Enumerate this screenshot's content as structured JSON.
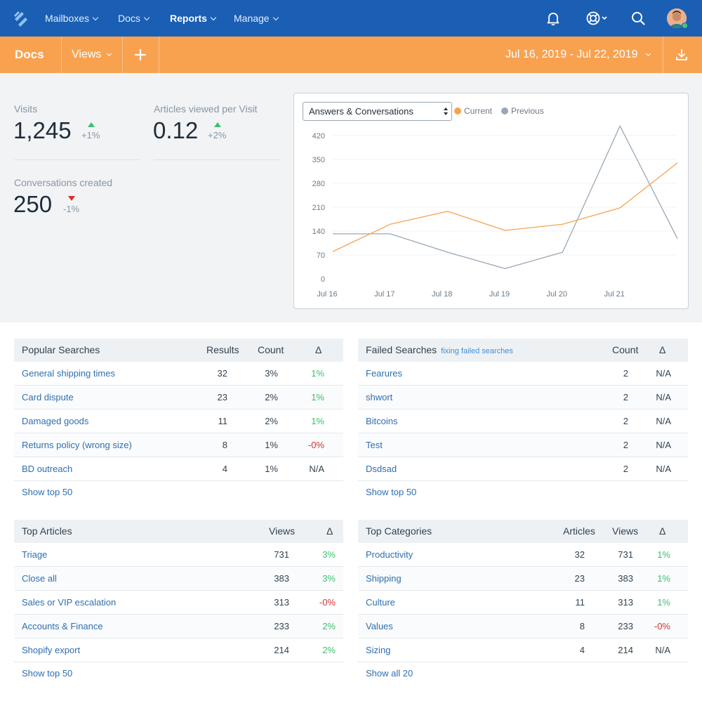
{
  "nav": {
    "items": [
      {
        "label": "Mailboxes"
      },
      {
        "label": "Docs"
      },
      {
        "label": "Reports"
      },
      {
        "label": "Manage"
      }
    ],
    "icons": [
      "bell-icon",
      "lifebuoy-icon",
      "search-icon"
    ]
  },
  "subnav": {
    "title": "Docs",
    "views_label": "Views",
    "date_range": "Jul 16, 2019 - Jul 22, 2019"
  },
  "stats": {
    "visits": {
      "label": "Visits",
      "value": "1,245",
      "delta": "+1%"
    },
    "articles_per_visit": {
      "label": "Articles viewed per Visit",
      "value": "0.12",
      "delta": "+2%"
    },
    "conversations": {
      "label": "Conversations created",
      "value": "250",
      "delta": "-1%"
    }
  },
  "chart_controls": {
    "select_value": "Answers & Conversations",
    "legend_current": "Current",
    "legend_previous": "Previous"
  },
  "colors": {
    "nav": "#1a5fb3",
    "accent": "#f8a250",
    "current": "#f8a250",
    "previous": "#9aa8b5",
    "positive": "#3cbf6f",
    "negative": "#d6322f",
    "link": "#2e6fb0"
  },
  "chart_data": {
    "type": "line",
    "categories": [
      "Jul 16",
      "Jul 17",
      "Jul 18",
      "Jul 19",
      "Jul 20",
      "Jul 21",
      "Jul 22"
    ],
    "series": [
      {
        "name": "Current",
        "values": [
          80,
          160,
          198,
          142,
          160,
          208,
          340
        ]
      },
      {
        "name": "Previous",
        "values": [
          132,
          132,
          78,
          30,
          78,
          448,
          118
        ]
      }
    ],
    "yticks": [
      0,
      70,
      140,
      210,
      280,
      350,
      420
    ],
    "ylim": [
      0,
      420
    ],
    "xtick_labels": [
      "Jul 16",
      "Jul 17",
      "Jul 18",
      "Jul 19",
      "Jul 20",
      "Jul 21"
    ],
    "grid": true,
    "legend": "top-left"
  },
  "popular_searches": {
    "title": "Popular Searches",
    "col_results": "Results",
    "col_count": "Count",
    "col_delta": "Δ",
    "rows": [
      {
        "term": "General shipping times",
        "results": "32",
        "count": "3%",
        "delta": "1%"
      },
      {
        "term": "Card dispute",
        "results": "23",
        "count": "2%",
        "delta": "1%"
      },
      {
        "term": "Damaged goods",
        "results": "11",
        "count": "2%",
        "delta": "1%"
      },
      {
        "term": "Returns policy (wrong size)",
        "results": "8",
        "count": "1%",
        "delta": "-0%"
      },
      {
        "term": "BD outreach",
        "results": "4",
        "count": "1%",
        "delta": "N/A"
      }
    ],
    "show_link": "Show top 50"
  },
  "failed_searches": {
    "title": "Failed Searches",
    "subtitle": "fixing failed searches",
    "col_count": "Count",
    "col_delta": "Δ",
    "rows": [
      {
        "term": "Fearures",
        "count": "2",
        "delta": "N/A"
      },
      {
        "term": "shwort",
        "count": "2",
        "delta": "N/A"
      },
      {
        "term": "Bitcoins",
        "count": "2",
        "delta": "N/A"
      },
      {
        "term": "Test",
        "count": "2",
        "delta": "N/A"
      },
      {
        "term": "Dsdsad",
        "count": "2",
        "delta": "N/A"
      }
    ],
    "show_link": "Show top 50"
  },
  "top_articles": {
    "title": "Top Articles",
    "col_views": "Views",
    "col_delta": "Δ",
    "rows": [
      {
        "name": "Triage",
        "views": "731",
        "delta": "3%"
      },
      {
        "name": "Close all",
        "views": "383",
        "delta": "3%"
      },
      {
        "name": "Sales or VIP escalation",
        "views": "313",
        "delta": "-0%"
      },
      {
        "name": "Accounts & Finance",
        "views": "233",
        "delta": "2%"
      },
      {
        "name": "Shopify export",
        "views": "214",
        "delta": "2%"
      }
    ],
    "show_link": "Show top 50"
  },
  "top_categories": {
    "title": "Top Categories",
    "col_articles": "Articles",
    "col_views": "Views",
    "col_delta": "Δ",
    "rows": [
      {
        "name": "Productivity",
        "articles": "32",
        "views": "731",
        "delta": "1%"
      },
      {
        "name": "Shipping",
        "articles": "23",
        "views": "383",
        "delta": "1%"
      },
      {
        "name": "Culture",
        "articles": "11",
        "views": "313",
        "delta": "1%"
      },
      {
        "name": "Values",
        "articles": "8",
        "views": "233",
        "delta": "-0%"
      },
      {
        "name": "Sizing",
        "articles": "4",
        "views": "214",
        "delta": "N/A"
      }
    ],
    "show_link": "Show all 20"
  }
}
